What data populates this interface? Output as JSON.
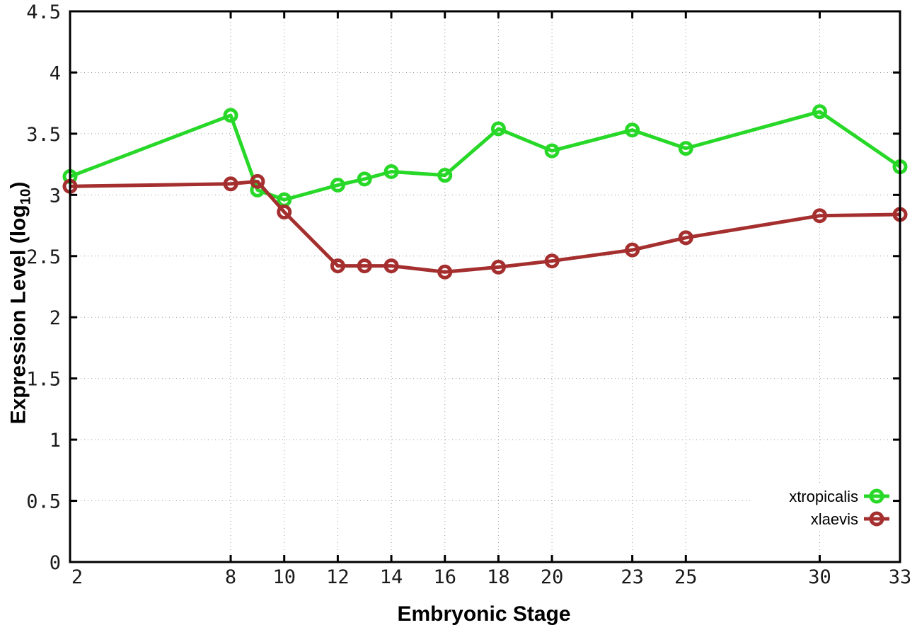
{
  "chart_data": {
    "type": "line",
    "title": "",
    "xlabel": "Embryonic Stage",
    "ylabel": "Expression Level (log10)",
    "ylabel_parts": {
      "prefix": "Expression Level (log",
      "sub": "10",
      "suffix": ")"
    },
    "xlim": [
      2,
      33
    ],
    "ylim": [
      0,
      4.5
    ],
    "y_tick_step": 0.5,
    "x_ticks": [
      2,
      8,
      10,
      12,
      14,
      16,
      18,
      20,
      23,
      25,
      30,
      33
    ],
    "grid": true,
    "legend_position": "bottom-right",
    "x": [
      2,
      8,
      9,
      10,
      12,
      13,
      14,
      16,
      18,
      20,
      23,
      25,
      30,
      33
    ],
    "series": [
      {
        "name": "xtropicalis",
        "color": "#28d828",
        "values": [
          3.15,
          3.65,
          3.04,
          2.96,
          3.08,
          3.13,
          3.19,
          3.16,
          3.54,
          3.36,
          3.53,
          3.38,
          3.68,
          3.23
        ]
      },
      {
        "name": "xlaevis",
        "color": "#a52f2f",
        "values": [
          3.07,
          3.09,
          3.11,
          2.86,
          2.42,
          2.42,
          2.42,
          2.37,
          2.41,
          2.46,
          2.55,
          2.65,
          2.83,
          2.84
        ]
      }
    ],
    "axis_color": "#000000",
    "grid_color": "#999999",
    "background_color": "#ffffff"
  }
}
